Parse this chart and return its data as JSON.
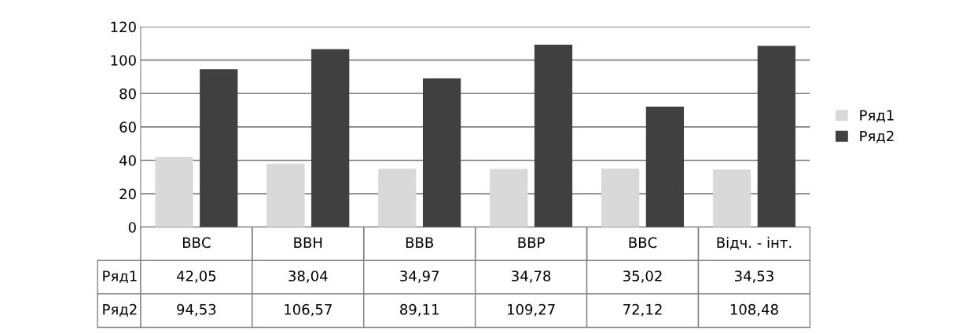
{
  "chart_data": {
    "type": "bar",
    "categories": [
      "ВВС",
      "ВВН",
      "ВВВ",
      "ВВР",
      "ВВС",
      "Відч. - інт."
    ],
    "series": [
      {
        "name": "Ряд1",
        "color": "#d9d9d9",
        "values": [
          42.05,
          38.04,
          34.97,
          34.78,
          35.02,
          34.53
        ],
        "value_labels": [
          "42,05",
          "38,04",
          "34,97",
          "34,78",
          "35,02",
          "34,53"
        ]
      },
      {
        "name": "Ряд2",
        "color": "#404040",
        "values": [
          94.53,
          106.57,
          89.11,
          109.27,
          72.12,
          108.48
        ],
        "value_labels": [
          "94,53",
          "106,57",
          "89,11",
          "109,27",
          "72,12",
          "108,48"
        ]
      }
    ],
    "ylim": [
      0,
      120
    ],
    "yticks": [
      0,
      20,
      40,
      60,
      80,
      100,
      120
    ],
    "grid": "y",
    "legend": "right"
  }
}
